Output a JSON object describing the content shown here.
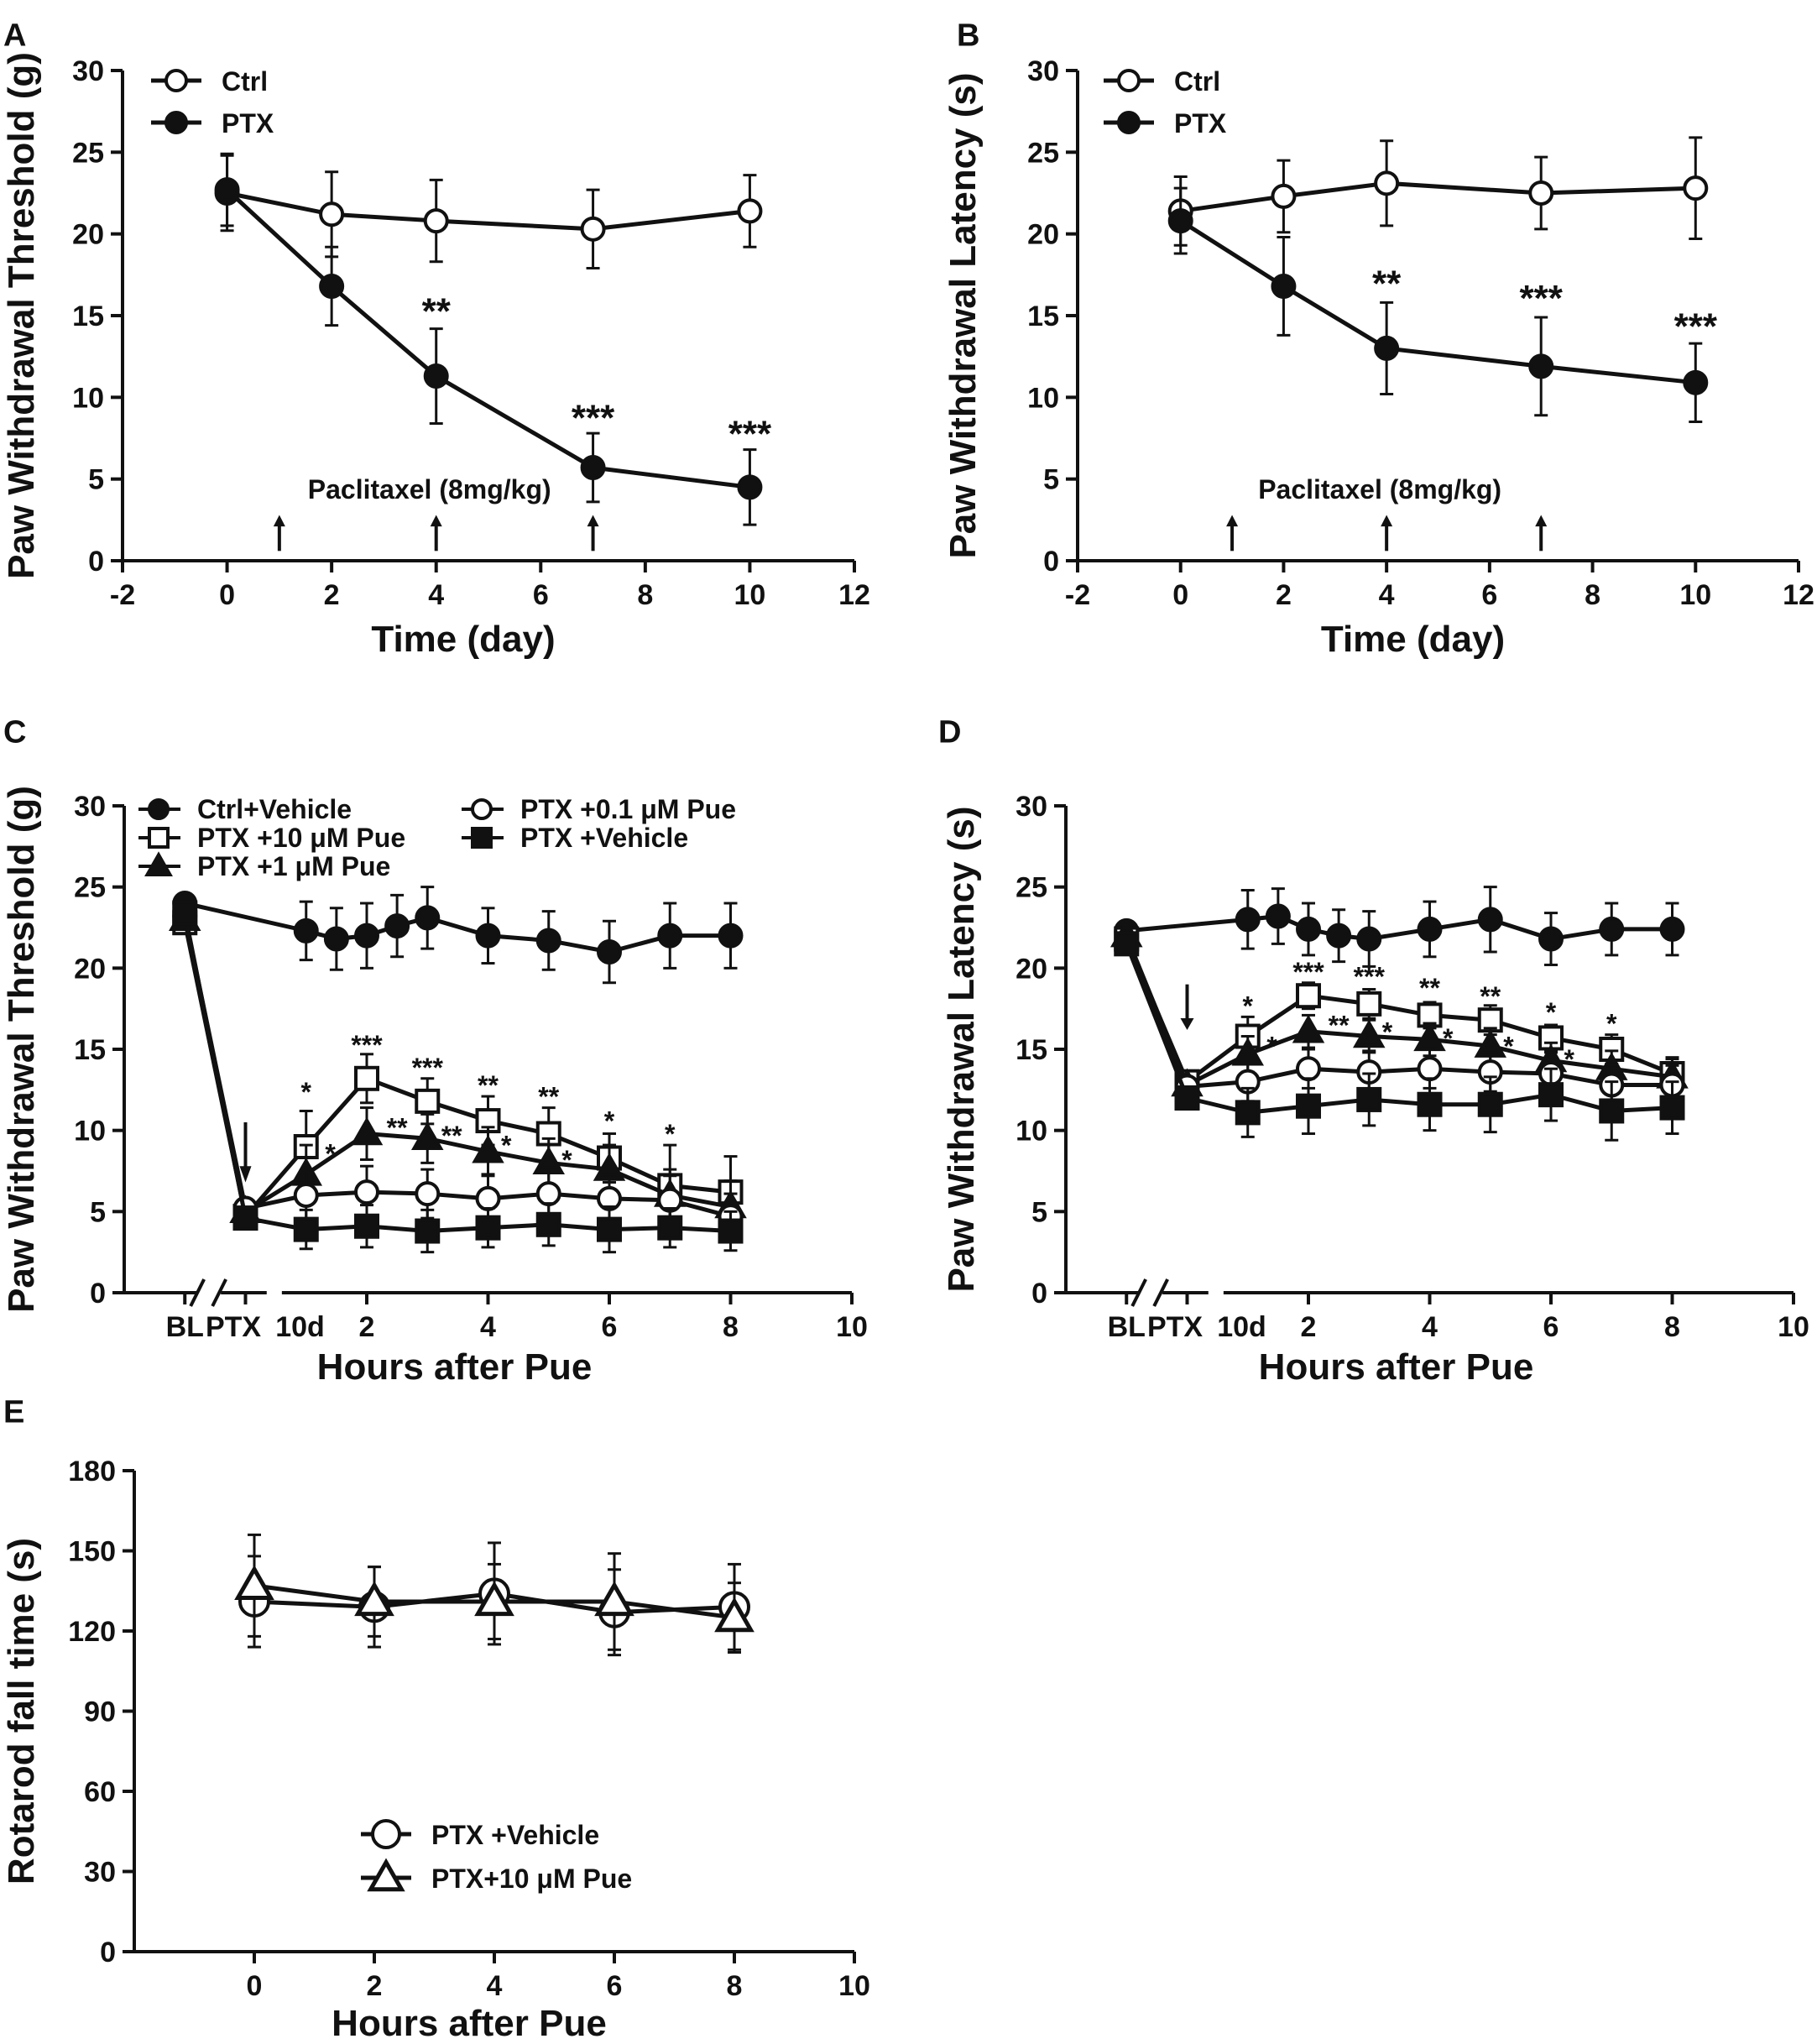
{
  "chart_data": [
    {
      "panel": "A",
      "type": "line",
      "xlabel": "Time (day)",
      "ylabel": "Paw Withdrawal Threshold (g)",
      "xlim": [
        -2,
        12
      ],
      "ylim": [
        0,
        30
      ],
      "xticks": [
        -2,
        0,
        2,
        4,
        6,
        8,
        10,
        12
      ],
      "yticks": [
        0,
        5,
        10,
        15,
        20,
        25,
        30
      ],
      "legend_position": "top-left",
      "series": [
        {
          "name": "Ctrl",
          "marker": "circle-open",
          "x": [
            0,
            2,
            4,
            7,
            10
          ],
          "values": [
            22.5,
            21.2,
            20.8,
            20.3,
            21.4
          ],
          "errors": [
            2.3,
            2.6,
            2.5,
            2.4,
            2.2
          ]
        },
        {
          "name": "PTX",
          "marker": "circle-filled",
          "x": [
            0,
            2,
            4,
            7,
            10
          ],
          "values": [
            22.7,
            16.8,
            11.3,
            5.7,
            4.5
          ],
          "errors": [
            2.2,
            2.4,
            2.9,
            2.1,
            2.3
          ]
        }
      ],
      "significance": [
        {
          "x": 4,
          "y": 14.5,
          "label": "**"
        },
        {
          "x": 7,
          "y": 8.0,
          "label": "***"
        },
        {
          "x": 10,
          "y": 7.0,
          "label": "***"
        }
      ],
      "annotation": {
        "text": "Paclitaxel (8mg/kg)",
        "arrows_at": [
          1,
          4,
          7
        ]
      }
    },
    {
      "panel": "B",
      "type": "line",
      "xlabel": "Time (day)",
      "ylabel": "Paw Withdrawal Latency (s)",
      "xlim": [
        -2,
        12
      ],
      "ylim": [
        0,
        30
      ],
      "xticks": [
        -2,
        0,
        2,
        4,
        6,
        8,
        10,
        12
      ],
      "yticks": [
        0,
        5,
        10,
        15,
        20,
        25,
        30
      ],
      "legend_position": "top-left",
      "series": [
        {
          "name": "Ctrl",
          "marker": "circle-open",
          "x": [
            0,
            2,
            4,
            7,
            10
          ],
          "values": [
            21.4,
            22.3,
            23.1,
            22.5,
            22.8
          ],
          "errors": [
            2.1,
            2.2,
            2.6,
            2.2,
            3.1
          ]
        },
        {
          "name": "PTX",
          "marker": "circle-filled",
          "x": [
            0,
            2,
            4,
            7,
            10
          ],
          "values": [
            20.8,
            16.8,
            13.0,
            11.9,
            10.9
          ],
          "errors": [
            2.0,
            3.0,
            2.8,
            3.0,
            2.4
          ]
        }
      ],
      "significance": [
        {
          "x": 4,
          "y": 16.2,
          "label": "**"
        },
        {
          "x": 7,
          "y": 15.3,
          "label": "***"
        },
        {
          "x": 10,
          "y": 13.6,
          "label": "***"
        }
      ],
      "annotation": {
        "text": "Paclitaxel (8mg/kg)",
        "arrows_at": [
          1,
          4,
          7
        ]
      }
    },
    {
      "panel": "C",
      "type": "line",
      "xlabel": "Hours after Pue",
      "ylabel": "Paw Withdrawal Threshold (g)",
      "xlim": [
        -2,
        10
      ],
      "ylim": [
        0,
        30
      ],
      "xticks": [
        2,
        4,
        6,
        8,
        10
      ],
      "xticklabels": [
        "2",
        "4",
        "6",
        "8",
        "10"
      ],
      "special_xlabels": [
        {
          "x": -1,
          "label": "BL"
        },
        {
          "x": -0.2,
          "label": "PTX"
        },
        {
          "x": 0.9,
          "label": "10d"
        }
      ],
      "yticks": [
        0,
        5,
        10,
        15,
        20,
        25,
        30
      ],
      "legend_position": "top",
      "baseline_x": -1,
      "ptx_x": 0,
      "series": [
        {
          "name": "Ctrl+Vehicle",
          "marker": "circle-filled",
          "bl": 24.0,
          "ptx": null,
          "x": [
            1,
            1.5,
            2,
            2.5,
            3,
            4,
            5,
            6,
            7,
            8
          ],
          "values": [
            22.3,
            21.8,
            22.0,
            22.6,
            23.1,
            22.0,
            21.7,
            21.0,
            22.0,
            22.0
          ],
          "errors": [
            1.8,
            1.9,
            2.0,
            1.9,
            1.9,
            1.7,
            1.8,
            1.9,
            2.0,
            2.0
          ]
        },
        {
          "name": "PTX +10 μM Pue",
          "marker": "square-open",
          "bl": 22.8,
          "ptx": 4.7,
          "x": [
            1,
            2,
            3,
            4,
            5,
            6,
            7,
            8
          ],
          "values": [
            9.0,
            13.2,
            11.8,
            10.6,
            9.8,
            8.3,
            6.6,
            6.2
          ],
          "errors": [
            2.2,
            1.5,
            1.4,
            1.5,
            1.6,
            1.5,
            2.5,
            2.2
          ]
        },
        {
          "name": "PTX +1 μM Pue",
          "marker": "triangle-filled",
          "bl": 23.0,
          "ptx": 5.0,
          "x": [
            1,
            2,
            3,
            4,
            5,
            6,
            7,
            8
          ],
          "values": [
            7.3,
            9.8,
            9.5,
            8.7,
            8.0,
            7.6,
            6.0,
            5.3
          ],
          "errors": [
            1.8,
            1.6,
            1.5,
            1.5,
            1.5,
            1.5,
            1.6,
            1.6
          ]
        },
        {
          "name": "PTX +0.1 μM Pue",
          "marker": "circle-open",
          "bl": 23.2,
          "ptx": 5.2,
          "x": [
            1,
            2,
            3,
            4,
            5,
            6,
            7,
            8
          ],
          "values": [
            6.0,
            6.2,
            6.1,
            5.8,
            6.1,
            5.8,
            5.7,
            4.7
          ],
          "errors": [
            1.5,
            1.6,
            1.5,
            1.5,
            1.6,
            1.5,
            1.5,
            1.4
          ]
        },
        {
          "name": "PTX +Vehicle",
          "marker": "square-filled",
          "bl": 23.4,
          "ptx": 4.6,
          "x": [
            1,
            2,
            3,
            4,
            5,
            6,
            7,
            8
          ],
          "values": [
            3.9,
            4.1,
            3.8,
            4.0,
            4.2,
            3.9,
            4.0,
            3.8
          ],
          "errors": [
            1.2,
            1.3,
            1.3,
            1.2,
            1.3,
            1.4,
            1.2,
            1.2
          ]
        }
      ],
      "significance": [
        {
          "x": 1,
          "y": 11.8,
          "label": "*"
        },
        {
          "x": 2,
          "y": 14.7,
          "label": "***"
        },
        {
          "x": 3,
          "y": 13.3,
          "label": "***"
        },
        {
          "x": 4,
          "y": 12.2,
          "label": "**"
        },
        {
          "x": 5,
          "y": 11.5,
          "label": "**"
        },
        {
          "x": 6,
          "y": 10.0,
          "label": "*"
        },
        {
          "x": 7,
          "y": 9.2,
          "label": "*"
        },
        {
          "x": 1.4,
          "y": 8.0,
          "label": "*"
        },
        {
          "x": 2.5,
          "y": 9.6,
          "label": "**"
        },
        {
          "x": 3.4,
          "y": 9.1,
          "label": "**"
        },
        {
          "x": 4.3,
          "y": 8.5,
          "label": "*"
        },
        {
          "x": 5.3,
          "y": 7.6,
          "label": "*"
        }
      ]
    },
    {
      "panel": "D",
      "type": "line",
      "xlabel": "Hours after Pue",
      "ylabel": "Paw Withdrawal Latency (s)",
      "xlim": [
        -2,
        10
      ],
      "ylim": [
        0,
        30
      ],
      "xticks": [
        2,
        4,
        6,
        8,
        10
      ],
      "xticklabels": [
        "2",
        "4",
        "6",
        "8",
        "10"
      ],
      "special_xlabels": [
        {
          "x": -1,
          "label": "BL"
        },
        {
          "x": -0.2,
          "label": "PTX"
        },
        {
          "x": 0.9,
          "label": "10d"
        }
      ],
      "yticks": [
        0,
        5,
        10,
        15,
        20,
        25,
        30
      ],
      "baseline_x": -1,
      "ptx_x": 0,
      "series": [
        {
          "name": "Ctrl+Vehicle",
          "marker": "circle-filled",
          "bl": 22.3,
          "ptx": null,
          "x": [
            1,
            1.5,
            2,
            2.5,
            3,
            4,
            5,
            6,
            7,
            8
          ],
          "values": [
            23.0,
            23.2,
            22.4,
            22.0,
            21.8,
            22.4,
            23.0,
            21.8,
            22.4,
            22.4
          ],
          "errors": [
            1.8,
            1.7,
            1.6,
            1.6,
            1.7,
            1.7,
            2.0,
            1.6,
            1.6,
            1.6
          ]
        },
        {
          "name": "PTX +10 μM Pue",
          "marker": "square-open",
          "bl": 21.8,
          "ptx": 13.0,
          "x": [
            1,
            2,
            3,
            4,
            5,
            6,
            7,
            8
          ],
          "values": [
            15.8,
            18.3,
            17.8,
            17.1,
            16.8,
            15.7,
            15.0,
            13.5
          ],
          "errors": [
            1.2,
            0.8,
            0.9,
            0.8,
            0.9,
            0.8,
            0.9,
            1.0
          ]
        },
        {
          "name": "PTX +1 μM Pue",
          "marker": "triangle-filled",
          "bl": 22.0,
          "ptx": 12.8,
          "x": [
            1,
            2,
            3,
            4,
            5,
            6,
            7,
            8
          ],
          "values": [
            14.7,
            16.1,
            15.8,
            15.6,
            15.2,
            14.3,
            13.8,
            13.3
          ],
          "errors": [
            1.1,
            1.0,
            1.0,
            1.0,
            1.1,
            1.1,
            1.1,
            1.1
          ]
        },
        {
          "name": "PTX +0.1 μM Pue",
          "marker": "circle-open",
          "bl": 21.6,
          "ptx": 12.7,
          "x": [
            1,
            2,
            3,
            4,
            5,
            6,
            7,
            8
          ],
          "values": [
            13.0,
            13.8,
            13.6,
            13.8,
            13.6,
            13.5,
            12.8,
            12.8
          ],
          "errors": [
            1.2,
            1.2,
            1.3,
            1.2,
            1.2,
            1.3,
            1.2,
            1.2
          ]
        },
        {
          "name": "PTX +Vehicle",
          "marker": "square-filled",
          "bl": 21.5,
          "ptx": 12.0,
          "x": [
            1,
            2,
            3,
            4,
            5,
            6,
            7,
            8
          ],
          "values": [
            11.1,
            11.5,
            11.9,
            11.6,
            11.6,
            12.2,
            11.2,
            11.4
          ],
          "errors": [
            1.5,
            1.7,
            1.6,
            1.6,
            1.7,
            1.6,
            1.8,
            1.6
          ]
        }
      ],
      "significance": [
        {
          "x": 1,
          "y": 17.1,
          "label": "*"
        },
        {
          "x": 2,
          "y": 19.2,
          "label": "***"
        },
        {
          "x": 3,
          "y": 18.9,
          "label": "***"
        },
        {
          "x": 4,
          "y": 18.2,
          "label": "**"
        },
        {
          "x": 5,
          "y": 17.7,
          "label": "**"
        },
        {
          "x": 6,
          "y": 16.7,
          "label": "*"
        },
        {
          "x": 7,
          "y": 16.0,
          "label": "*"
        },
        {
          "x": 1.4,
          "y": 14.6,
          "label": "*"
        },
        {
          "x": 2.5,
          "y": 15.9,
          "label": "**"
        },
        {
          "x": 3.3,
          "y": 15.5,
          "label": "*"
        },
        {
          "x": 4.3,
          "y": 15.1,
          "label": "*"
        },
        {
          "x": 5.3,
          "y": 14.6,
          "label": "*"
        },
        {
          "x": 6.3,
          "y": 13.8,
          "label": "*"
        }
      ],
      "annotation": {
        "arrow_at": 0,
        "arrow_y": [
          19.0,
          16.5
        ]
      }
    },
    {
      "panel": "E",
      "type": "line",
      "xlabel": "Hours after Pue",
      "ylabel": "Rotarod fall time (s)",
      "xlim": [
        -2,
        10
      ],
      "ylim": [
        0,
        180
      ],
      "xticks": [
        0,
        2,
        4,
        6,
        8,
        10
      ],
      "yticks": [
        0,
        30,
        60,
        90,
        120,
        150,
        180
      ],
      "legend_position": "bottom-center",
      "series": [
        {
          "name": "PTX +Vehicle",
          "marker": "circle-open",
          "x": [
            0,
            2,
            4,
            6,
            8
          ],
          "values": [
            131,
            129,
            134,
            127,
            129
          ],
          "errors": [
            17,
            15,
            19,
            16,
            16
          ]
        },
        {
          "name": "PTX+10 μM Pue",
          "marker": "triangle-open",
          "x": [
            0,
            2,
            4,
            6,
            8
          ],
          "values": [
            137,
            131,
            131,
            131,
            125
          ],
          "errors": [
            19,
            13,
            14,
            18,
            13
          ]
        }
      ]
    }
  ]
}
